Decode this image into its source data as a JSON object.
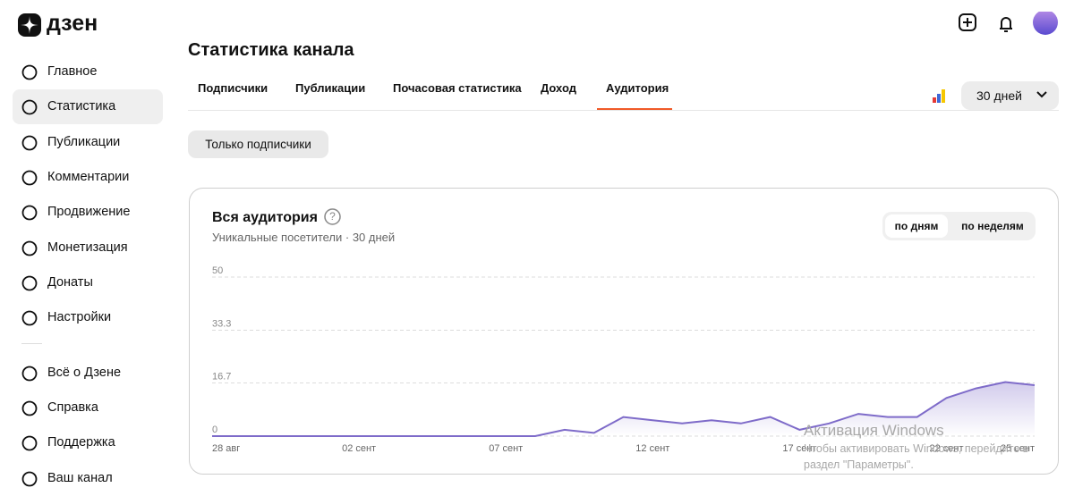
{
  "logo": "дзен",
  "nav": [
    {
      "label": "Главное"
    },
    {
      "label": "Статистика"
    },
    {
      "label": "Публикации"
    },
    {
      "label": "Комментарии"
    },
    {
      "label": "Продвижение"
    },
    {
      "label": "Монетизация"
    },
    {
      "label": "Донаты"
    },
    {
      "label": "Настройки"
    },
    {
      "label": "Всё о Дзене"
    },
    {
      "label": "Справка"
    },
    {
      "label": "Поддержка"
    },
    {
      "label": "Ваш канал"
    }
  ],
  "page_title": "Статистика канала",
  "tabs": [
    "Подписчики",
    "Публикации",
    "Почасовая статистика",
    "Доход",
    "Аудитория"
  ],
  "period": "30 дней",
  "filter": "Только подписчики",
  "card": {
    "title": "Вся аудитория",
    "subtitle": "Уникальные посетители · 30 дней",
    "toggle": [
      "по дням",
      "по неделям"
    ]
  },
  "chart_data": {
    "type": "line",
    "x": [
      "28 авг",
      null,
      null,
      null,
      null,
      "02 сент",
      null,
      null,
      null,
      null,
      "07 сент",
      null,
      null,
      null,
      null,
      "12 сент",
      null,
      null,
      null,
      null,
      "17 сент",
      null,
      null,
      null,
      null,
      "22 сент",
      null,
      null,
      "25 сент"
    ],
    "series": [
      {
        "name": "Вся аудитория",
        "color": "#7e6bc9",
        "values": [
          0,
          0,
          0,
          0,
          0,
          0,
          0,
          0,
          0,
          0,
          0,
          0,
          2,
          1,
          6,
          5,
          4,
          5,
          4,
          6,
          2,
          4,
          7,
          6,
          6,
          12,
          15,
          17,
          16
        ]
      }
    ],
    "ylim": [
      0,
      50
    ],
    "yticks": [
      0,
      16.7,
      33.3,
      50
    ],
    "grid": true
  },
  "watermark": {
    "title": "Активация Windows",
    "text": "Чтобы активировать Windows, перейдите в раздел \"Параметры\"."
  }
}
